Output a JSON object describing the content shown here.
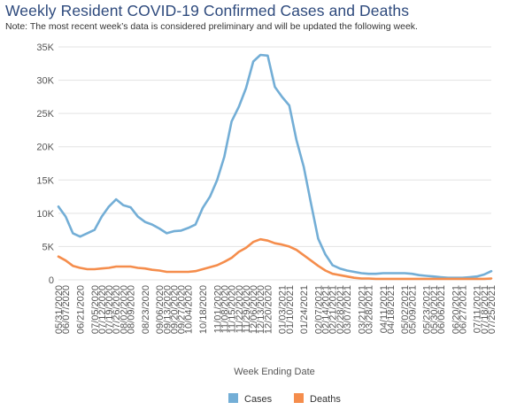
{
  "page": {
    "title": "Weekly Resident COVID-19 Confirmed Cases and Deaths",
    "note": "Note: The most recent week’s data is considered preliminary and will be updated the following week."
  },
  "colors": {
    "title": "#2e4a7d",
    "cases": "#73aed6",
    "deaths": "#f58d4c",
    "grid": "#e3e3e3",
    "axis_text": "#555555"
  },
  "chart_data": {
    "type": "line",
    "title": "Weekly Resident COVID-19 Confirmed Cases and Deaths",
    "xlabel": "Week Ending Date",
    "ylabel": "",
    "ylim": [
      0,
      35000
    ],
    "yticks": [
      0,
      5000,
      10000,
      15000,
      20000,
      25000,
      30000,
      35000
    ],
    "ytick_labels": [
      "0",
      "5K",
      "10K",
      "15K",
      "20K",
      "25K",
      "30K",
      "35K"
    ],
    "grid": "horizontal",
    "legend_position": "bottom-center",
    "x": [
      "05/31/2020",
      "06/07/2020",
      "06/14/2020",
      "06/21/2020",
      "06/28/2020",
      "07/05/2020",
      "07/12/2020",
      "07/19/2020",
      "07/26/2020",
      "08/02/2020",
      "08/09/2020",
      "08/16/2020",
      "08/23/2020",
      "08/30/2020",
      "09/06/2020",
      "09/13/2020",
      "09/20/2020",
      "09/27/2020",
      "10/04/2020",
      "10/11/2020",
      "10/18/2020",
      "10/25/2020",
      "11/01/2020",
      "11/08/2020",
      "11/15/2020",
      "11/22/2020",
      "11/29/2020",
      "12/06/2020",
      "12/13/2020",
      "12/20/2020",
      "12/27/2020",
      "01/03/2021",
      "01/10/2021",
      "01/17/2021",
      "01/24/2021",
      "01/31/2021",
      "02/07/2021",
      "02/14/2021",
      "02/21/2021",
      "02/28/2021",
      "03/07/2021",
      "03/14/2021",
      "03/21/2021",
      "03/28/2021",
      "04/04/2021",
      "04/11/2021",
      "04/18/2021",
      "04/25/2021",
      "05/02/2021",
      "05/09/2021",
      "05/16/2021",
      "05/23/2021",
      "05/30/2021",
      "06/06/2021",
      "06/13/2021",
      "06/20/2021",
      "06/27/2021",
      "07/04/2021",
      "07/11/2021",
      "07/18/2021",
      "07/25/2021"
    ],
    "x_tick_labels": [
      "05/31/2020",
      "06/07/2020",
      "06/21/2020",
      "07/05/2020",
      "07/12/2020",
      "07/19/2020",
      "07/26/2020",
      "08/02/2020",
      "08/09/2020",
      "08/23/2020",
      "09/06/2020",
      "09/13/2020",
      "09/20/2020",
      "09/27/2020",
      "10/04/2020",
      "10/18/2020",
      "11/01/2020",
      "11/08/2020",
      "11/15/2020",
      "11/22/2020",
      "11/29/2020",
      "12/06/2020",
      "12/13/2020",
      "12/20/2020",
      "01/03/2021",
      "01/10/2021",
      "01/24/2021",
      "02/07/2021",
      "02/14/2021",
      "02/21/2021",
      "02/28/2021",
      "03/07/2021",
      "03/21/2021",
      "03/28/2021",
      "04/11/2021",
      "04/18/2021",
      "05/02/2021",
      "05/09/2021",
      "05/23/2021",
      "05/30/2021",
      "06/06/2021",
      "06/20/2021",
      "06/27/2021",
      "07/11/2021",
      "07/18/2021",
      "07/25/2021"
    ],
    "series": [
      {
        "name": "Cases",
        "color": "#73aed6",
        "values": [
          11000,
          9500,
          7000,
          6500,
          7000,
          7500,
          9500,
          11000,
          12100,
          11200,
          10900,
          9500,
          8700,
          8300,
          7700,
          7000,
          7300,
          7400,
          7800,
          8300,
          10800,
          12500,
          15000,
          18500,
          23800,
          26000,
          28800,
          32800,
          33800,
          33700,
          29000,
          27500,
          26200,
          21000,
          17000,
          11500,
          6200,
          3800,
          2200,
          1700,
          1400,
          1200,
          1000,
          900,
          900,
          1000,
          1000,
          1000,
          1000,
          900,
          700,
          600,
          500,
          400,
          300,
          300,
          300,
          400,
          500,
          800,
          1300
        ]
      },
      {
        "name": "Deaths",
        "color": "#f58d4c",
        "values": [
          3500,
          2900,
          2100,
          1800,
          1600,
          1600,
          1700,
          1800,
          2000,
          2000,
          2000,
          1800,
          1700,
          1500,
          1400,
          1200,
          1200,
          1200,
          1200,
          1300,
          1600,
          1900,
          2200,
          2700,
          3300,
          4200,
          4800,
          5700,
          6100,
          5900,
          5500,
          5300,
          5000,
          4500,
          3700,
          2900,
          2100,
          1400,
          900,
          700,
          500,
          300,
          200,
          200,
          150,
          150,
          150,
          150,
          150,
          150,
          150,
          150,
          150,
          150,
          150,
          150,
          150,
          150,
          150,
          150,
          200
        ]
      }
    ]
  }
}
